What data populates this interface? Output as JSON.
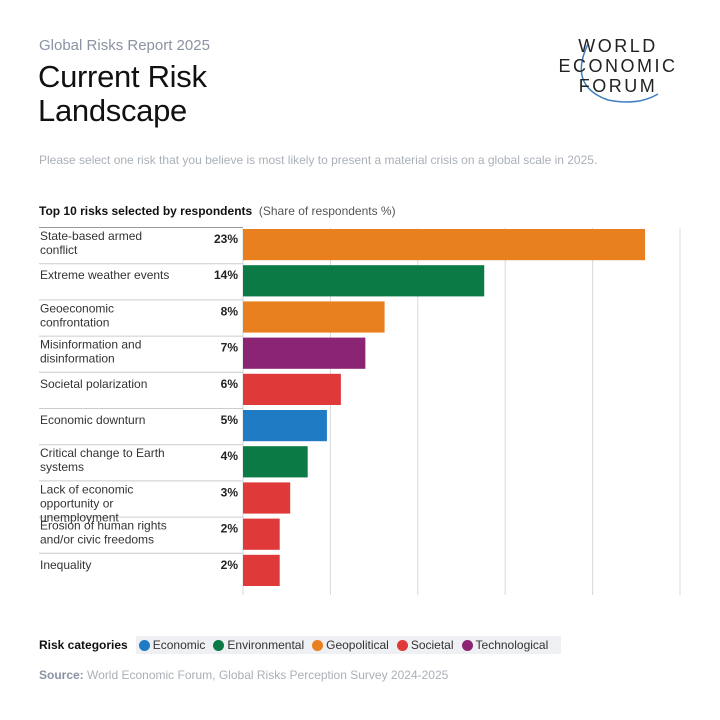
{
  "header": {
    "kicker": "Global Risks Report 2025",
    "title": "Current Risk Landscape",
    "logo_lines": [
      "WORLD",
      "ECONOMIC",
      "FORUM"
    ]
  },
  "question": "Please select one risk that you believe is most likely to present a material crisis on a global scale in 2025.",
  "chart_data": {
    "type": "bar",
    "orientation": "horizontal",
    "title": "Top 10 risks selected by respondents",
    "subtitle": "(Share of respondents %)",
    "categories": [
      "State-based armed conflict",
      "Extreme weather events",
      "Geoeconomic confrontation",
      "Misinformation and disinformation",
      "Societal polarization",
      "Economic downturn",
      "Critical change to Earth systems",
      "Lack of economic opportunity or unemployment",
      "Erosion of human rights and/or civic freedoms",
      "Inequality"
    ],
    "values": [
      23,
      14,
      8,
      7,
      6,
      5,
      4,
      3,
      2,
      2
    ],
    "value_labels": [
      "23%",
      "14%",
      "8%",
      "7%",
      "6%",
      "5%",
      "4%",
      "3%",
      "2%",
      "2%"
    ],
    "bar_lengths_estimated": [
      23,
      13.8,
      8.1,
      7,
      5.6,
      4.8,
      3.7,
      2.7,
      2.1,
      2.1
    ],
    "bar_categories": [
      "Geopolitical",
      "Environmental",
      "Geopolitical",
      "Technological",
      "Societal",
      "Economic",
      "Environmental",
      "Societal",
      "Societal",
      "Societal"
    ],
    "xlim": [
      0,
      25
    ],
    "grid": true,
    "legend_position": "bottom"
  },
  "legend": {
    "title": "Risk categories",
    "items": [
      {
        "label": "Economic",
        "color": "#1f7bc4"
      },
      {
        "label": "Environmental",
        "color": "#0b7a45"
      },
      {
        "label": "Geopolitical",
        "color": "#e8801f"
      },
      {
        "label": "Societal",
        "color": "#e0393a"
      },
      {
        "label": "Technological",
        "color": "#8c2474"
      }
    ]
  },
  "source": {
    "label": "Source:",
    "text": "World Economic Forum, Global Risks Perception Survey 2024-2025"
  }
}
